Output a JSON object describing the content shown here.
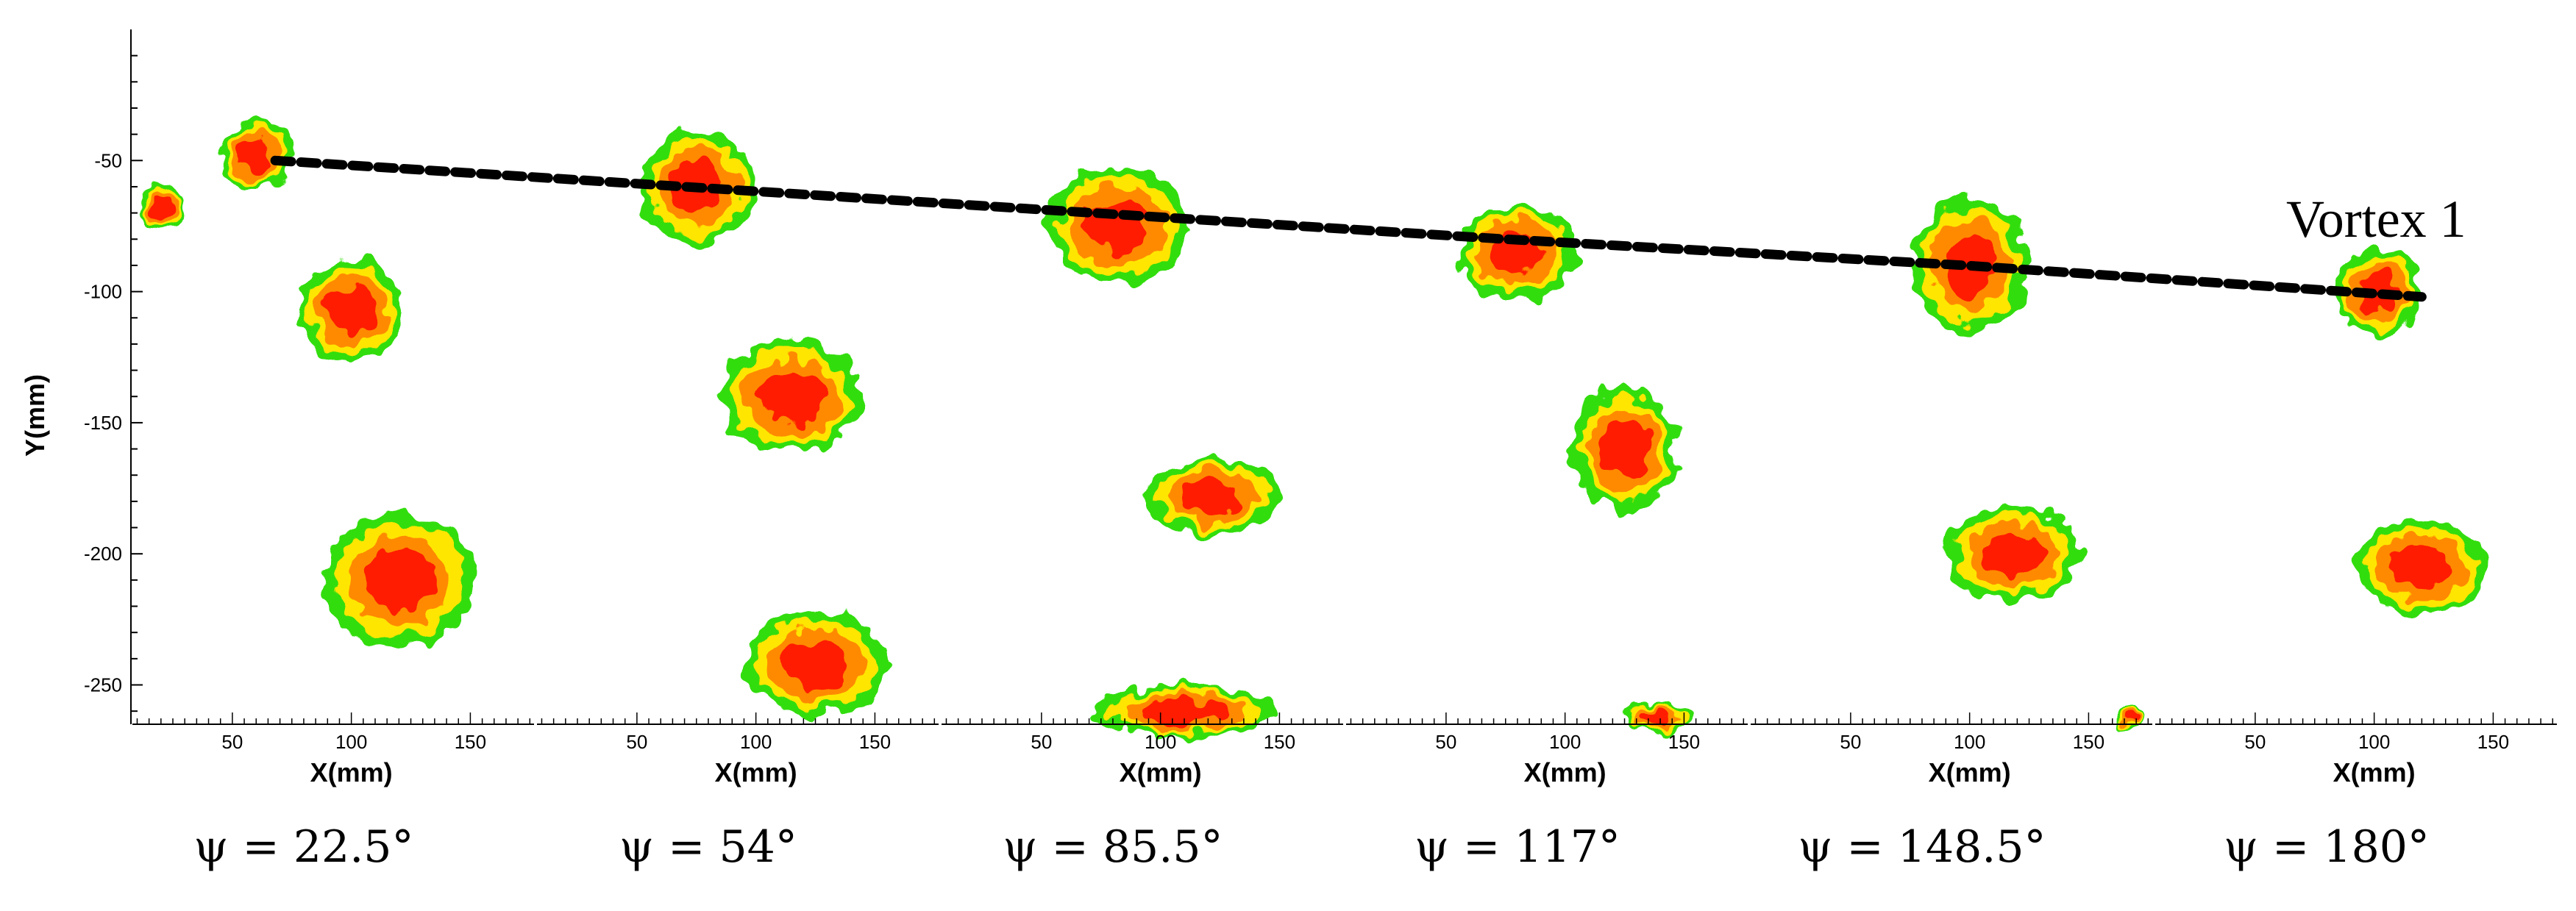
{
  "chart_data": {
    "type": "contour",
    "ylabel": "Y(mm)",
    "ylim": [
      -265,
      0
    ],
    "yticks": [
      -50,
      -100,
      -150,
      -200,
      -250
    ],
    "colors": {
      "high": "#ff1a00",
      "mid": "#ff8a00",
      "low": "#ffe600",
      "edge": "#33dd11"
    },
    "vortex_line": {
      "label": "Vortex 1",
      "points": [
        [
          1,
          68,
          -50
        ],
        [
          2,
          70,
          -60
        ],
        [
          3,
          72,
          -70
        ],
        [
          4,
          75,
          -80
        ],
        [
          5,
          98,
          -90
        ],
        [
          6,
          120,
          -102
        ]
      ]
    },
    "panels": [
      {
        "caption": "ψ = 22.5°",
        "xlabel": "X(mm)",
        "xlim": [
          8,
          178
        ],
        "xticks": [
          50,
          100,
          150
        ],
        "blobs": [
          {
            "x": 60,
            "y": -48,
            "rx": 16,
            "ry": 13
          },
          {
            "x": 20,
            "y": -68,
            "rx": 9,
            "ry": 9
          },
          {
            "x": 100,
            "y": -107,
            "rx": 22,
            "ry": 20
          },
          {
            "x": 120,
            "y": -210,
            "rx": 32,
            "ry": 25
          }
        ]
      },
      {
        "caption": "ψ = 54°",
        "xlabel": "X(mm)",
        "xlim": [
          8,
          178
        ],
        "xticks": [
          50,
          100,
          150
        ],
        "blobs": [
          {
            "x": 75,
            "y": -60,
            "rx": 24,
            "ry": 22
          },
          {
            "x": 115,
            "y": -140,
            "rx": 30,
            "ry": 22
          },
          {
            "x": 125,
            "y": -242,
            "rx": 30,
            "ry": 20
          }
        ]
      },
      {
        "caption": "ψ = 85.5°",
        "xlabel": "X(mm)",
        "xlim": [
          8,
          178
        ],
        "xticks": [
          50,
          100,
          150
        ],
        "blobs": [
          {
            "x": 82,
            "y": -75,
            "rx": 30,
            "ry": 22
          },
          {
            "x": 122,
            "y": -178,
            "rx": 28,
            "ry": 15
          },
          {
            "x": 110,
            "y": -260,
            "rx": 38,
            "ry": 10
          }
        ]
      },
      {
        "caption": "ψ = 117°",
        "xlabel": "X(mm)",
        "xlim": [
          8,
          178
        ],
        "xticks": [
          50,
          100,
          150
        ],
        "blobs": [
          {
            "x": 80,
            "y": -85,
            "rx": 25,
            "ry": 18
          },
          {
            "x": 125,
            "y": -160,
            "rx": 22,
            "ry": 24
          },
          {
            "x": 138,
            "y": -262,
            "rx": 14,
            "ry": 7
          }
        ]
      },
      {
        "caption": "ψ = 148.5°",
        "xlabel": "X(mm)",
        "xlim": [
          8,
          178
        ],
        "xticks": [
          50,
          100,
          150
        ],
        "blobs": [
          {
            "x": 100,
            "y": -90,
            "rx": 24,
            "ry": 26
          },
          {
            "x": 118,
            "y": -200,
            "rx": 28,
            "ry": 18
          },
          {
            "x": 168,
            "y": -262,
            "rx": 6,
            "ry": 5
          }
        ]
      },
      {
        "caption": "ψ = 180°",
        "xlabel": "X(mm)",
        "xlim": [
          8,
          178
        ],
        "xticks": [
          50,
          100,
          150
        ],
        "blobs": [
          {
            "x": 102,
            "y": -100,
            "rx": 18,
            "ry": 17
          },
          {
            "x": 120,
            "y": -205,
            "rx": 28,
            "ry": 18
          }
        ]
      }
    ]
  }
}
